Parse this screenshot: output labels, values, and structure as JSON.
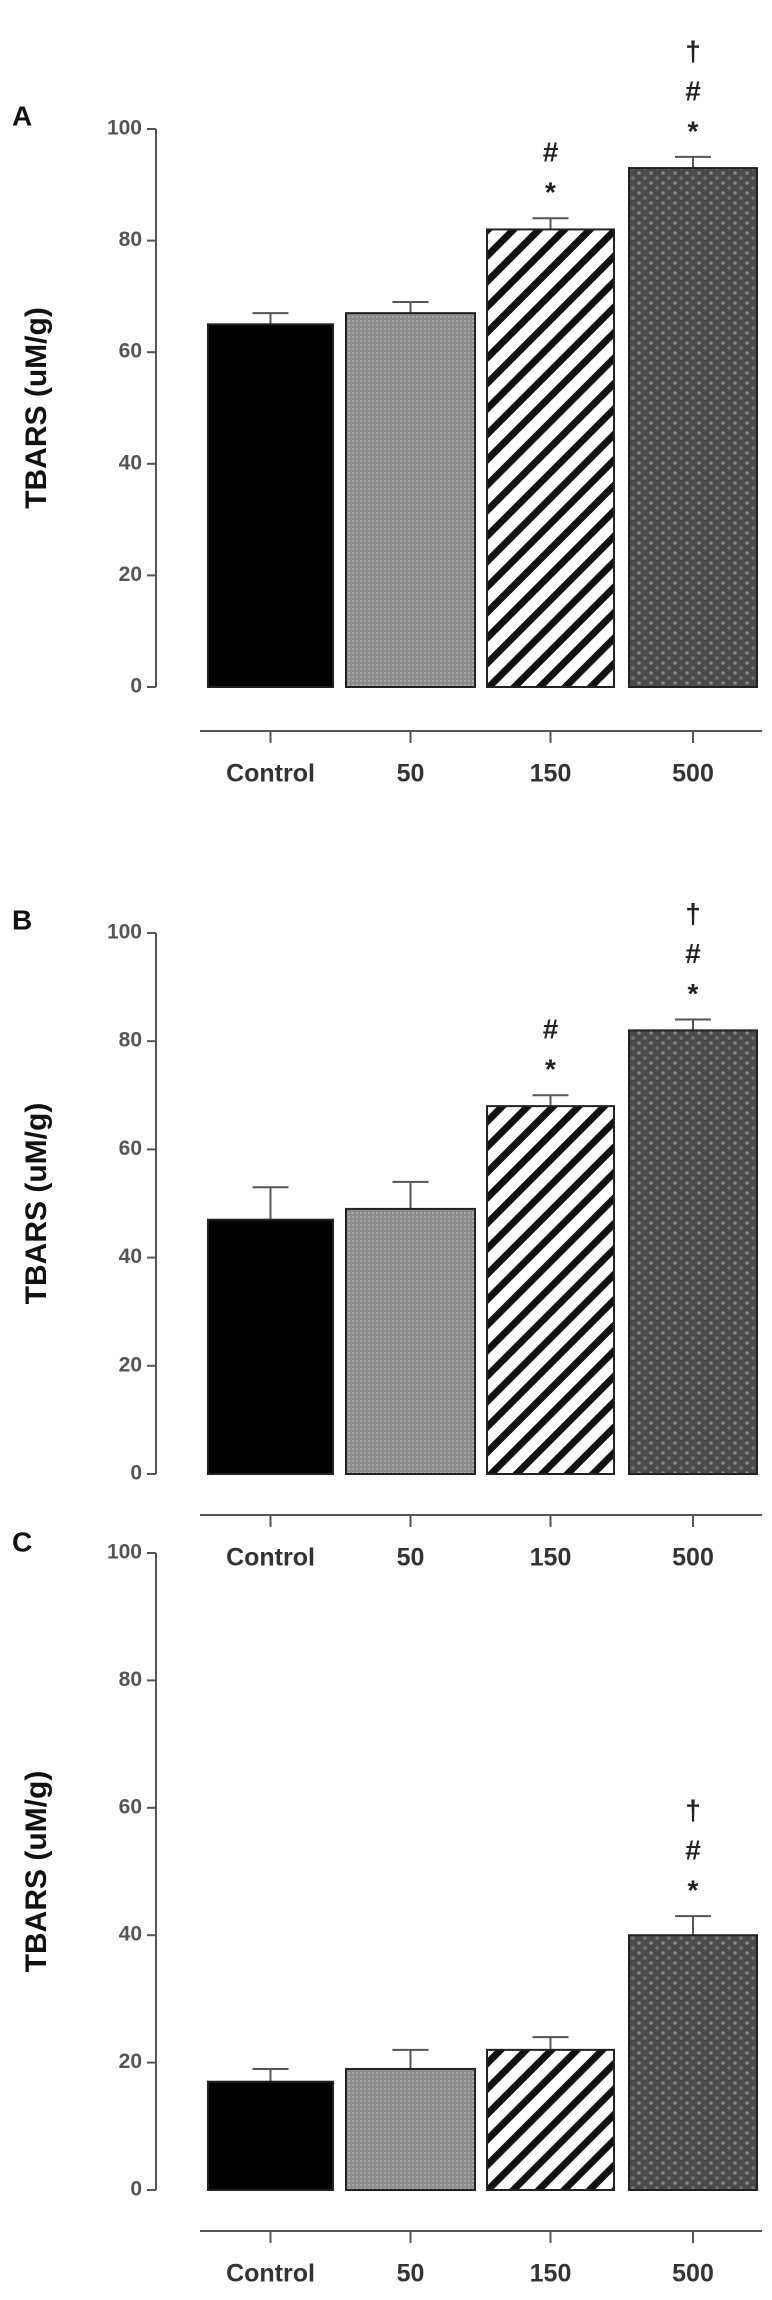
{
  "chart_data": [
    {
      "type": "bar",
      "label": "A",
      "ylabel": "TBARS (uM/g)",
      "categories": [
        "Control",
        "50",
        "150",
        "500"
      ],
      "values": [
        65,
        67,
        82,
        93
      ],
      "errors": [
        2,
        2,
        2,
        2
      ],
      "annotations": [
        [],
        [],
        [
          "*",
          "#"
        ],
        [
          "*",
          "#",
          "†"
        ]
      ],
      "patterns": [
        "solid",
        "fine",
        "diagonal",
        "dotted"
      ],
      "ylim": [
        0,
        100
      ],
      "yticks": [
        0,
        20,
        40,
        60,
        80,
        100
      ]
    },
    {
      "type": "bar",
      "label": "B",
      "ylabel": "TBARS (uM/g)",
      "categories": [
        "Control",
        "50",
        "150",
        "500"
      ],
      "values": [
        47,
        49,
        68,
        82
      ],
      "errors": [
        6,
        5,
        2,
        2
      ],
      "annotations": [
        [],
        [],
        [
          "*",
          "#"
        ],
        [
          "*",
          "#",
          "†"
        ]
      ],
      "patterns": [
        "solid",
        "fine",
        "diagonal",
        "dotted"
      ],
      "ylim": [
        0,
        100
      ],
      "yticks": [
        0,
        20,
        40,
        60,
        80,
        100
      ]
    },
    {
      "type": "bar",
      "label": "C",
      "ylabel": "TBARS (uM/g)",
      "categories": [
        "Control",
        "50",
        "150",
        "500"
      ],
      "values": [
        17,
        19,
        22,
        40
      ],
      "errors": [
        2,
        3,
        2,
        3
      ],
      "annotations": [
        [],
        [],
        [],
        [
          "*",
          "#",
          "†"
        ]
      ],
      "patterns": [
        "solid",
        "fine",
        "diagonal",
        "dotted"
      ],
      "ylim": [
        0,
        100
      ],
      "yticks": [
        0,
        20,
        40,
        60,
        80,
        100
      ]
    }
  ]
}
